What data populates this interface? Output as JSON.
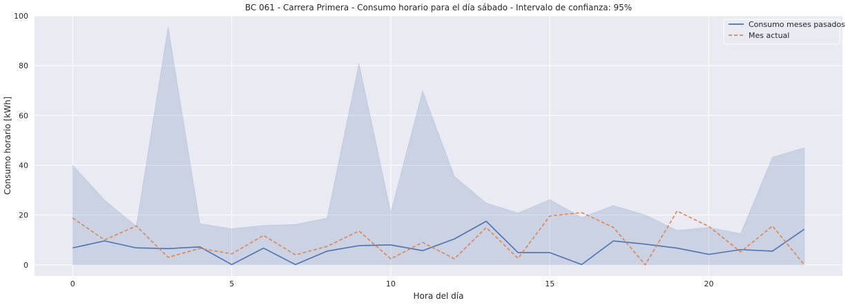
{
  "chart_data": {
    "type": "line",
    "title": "BC 061 - Carrera Primera - Consumo horario para el día sábado - Intervalo de confianza: 95%",
    "xlabel": "Hora del día",
    "ylabel": "Consumo horario [kWh]",
    "xlim": [
      -1.2,
      24.2
    ],
    "ylim": [
      -4.5,
      100
    ],
    "xticks": [
      0,
      5,
      10,
      15,
      20
    ],
    "yticks": [
      0,
      20,
      40,
      60,
      80,
      100
    ],
    "grid": true,
    "legend_position": "top-right",
    "x": [
      0,
      1,
      2,
      3,
      4,
      5,
      6,
      7,
      8,
      9,
      10,
      11,
      12,
      13,
      14,
      15,
      16,
      17,
      18,
      19,
      20,
      21,
      22,
      23
    ],
    "series": [
      {
        "name": "Consumo meses pasados",
        "style": "solid",
        "color": "#4c72b0",
        "values": [
          6.8,
          9.6,
          6.8,
          6.5,
          7.2,
          0.1,
          6.7,
          0.1,
          5.5,
          7.7,
          8.0,
          5.7,
          10.4,
          17.5,
          4.9,
          4.9,
          0.1,
          9.6,
          8.3,
          6.7,
          4.2,
          6.1,
          5.5,
          14.3
        ],
        "ci_lower": [
          0,
          0,
          0,
          0,
          0,
          0,
          0,
          0,
          0,
          0,
          0,
          0,
          0,
          0,
          0,
          0,
          0,
          0,
          0,
          0,
          0,
          0,
          0,
          0
        ],
        "ci_upper": [
          40.0,
          26.0,
          15.5,
          95.5,
          16.5,
          14.5,
          15.8,
          16.2,
          18.8,
          80.8,
          21.0,
          69.8,
          35.5,
          24.8,
          20.8,
          26.2,
          19.0,
          23.8,
          20.0,
          13.8,
          15.0,
          12.5,
          43.2,
          47.0
        ]
      },
      {
        "name": "Mes actual",
        "style": "dashed",
        "color": "#dd8452",
        "values": [
          18.8,
          10.0,
          15.6,
          3.0,
          6.6,
          4.4,
          11.8,
          4.0,
          7.4,
          13.6,
          2.4,
          9.0,
          2.4,
          15.0,
          2.6,
          19.6,
          21.0,
          15.0,
          0.0,
          21.6,
          15.4,
          5.2,
          15.6,
          0.0
        ]
      }
    ]
  }
}
